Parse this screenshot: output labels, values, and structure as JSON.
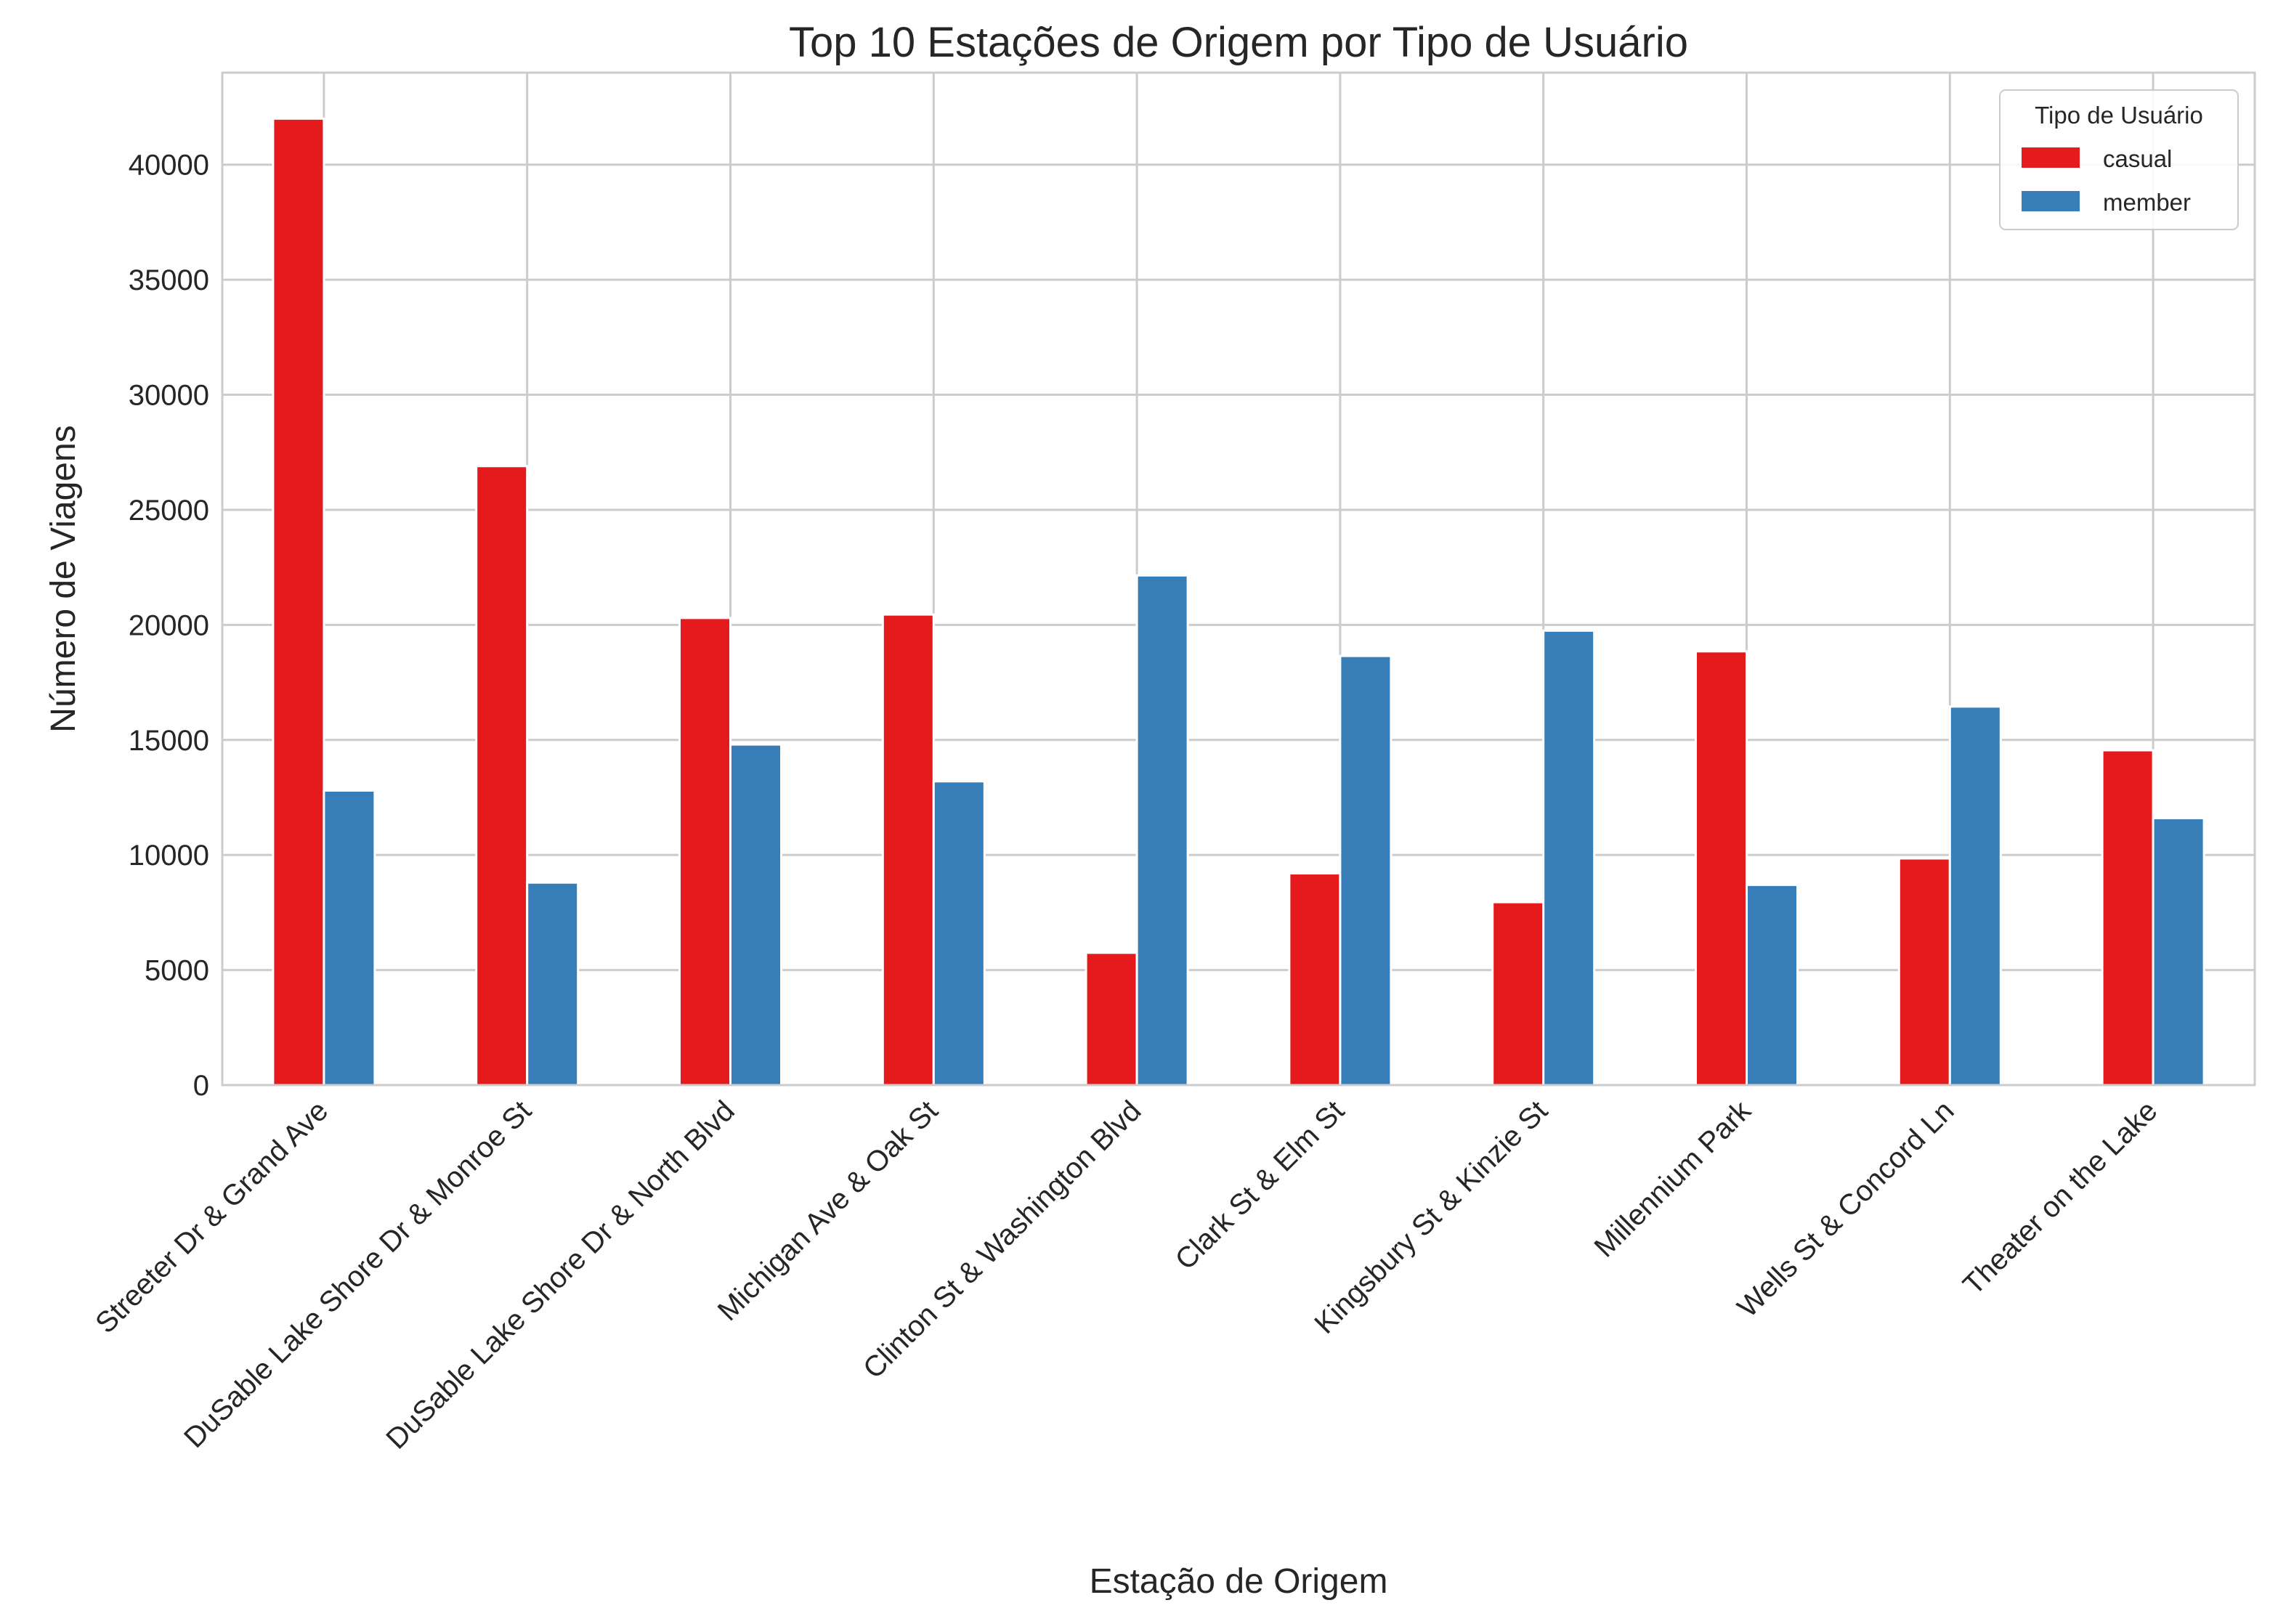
{
  "chart_data": {
    "type": "bar",
    "title": "Top 10 Estações de Origem por Tipo de Usuário",
    "xlabel": "Estação de Origem",
    "ylabel": "Número de Viagens",
    "ylim": [
      0,
      44000
    ],
    "yticks": [
      0,
      5000,
      10000,
      15000,
      20000,
      25000,
      30000,
      35000,
      40000
    ],
    "grid": true,
    "legend": {
      "title": "Tipo de Usuário",
      "placement": "top-right"
    },
    "categories": [
      "Streeter Dr & Grand Ave",
      "DuSable Lake Shore Dr & Monroe St",
      "DuSable Lake Shore Dr & North Blvd",
      "Michigan Ave & Oak St",
      "Clinton St & Washington Blvd",
      "Clark St & Elm St",
      "Kingsbury St & Kinzie St",
      "Millennium Park",
      "Wells St & Concord Ln",
      "Theater on the Lake"
    ],
    "series": [
      {
        "name": "casual",
        "color": "#e41a1c",
        "values": [
          42000,
          26900,
          20300,
          20450,
          5750,
          9200,
          7950,
          18850,
          9850,
          14550
        ]
      },
      {
        "name": "member",
        "color": "#377eb8",
        "values": [
          12800,
          8800,
          14800,
          13200,
          22150,
          18650,
          19750,
          8700,
          16450,
          11600
        ]
      }
    ]
  }
}
